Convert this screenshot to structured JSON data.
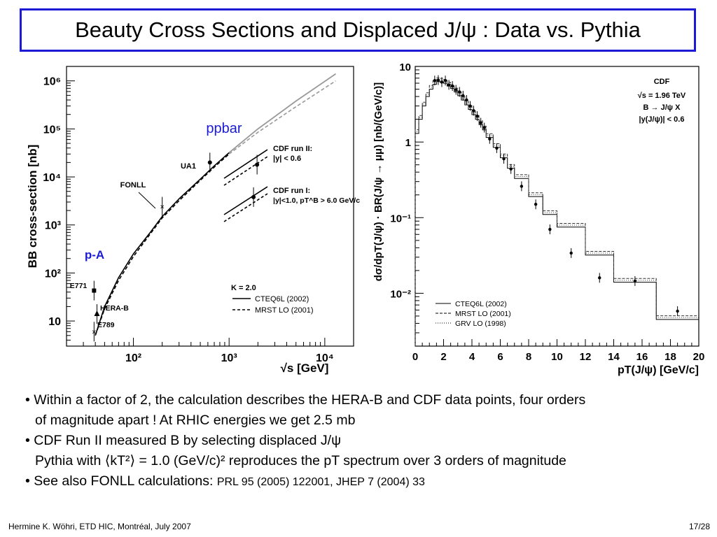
{
  "title": "Beauty Cross Sections and Displaced J/ψ : Data vs. Pythia",
  "bullets": {
    "b1_line1": "• Within a factor of 2, the calculation describes the HERA-B and CDF data points, four orders",
    "b1_line2": "of magnitude apart !  At RHIC energies we get 2.5 mb",
    "b2_line1": "• CDF Run II measured B by selecting displaced J/ψ",
    "b2_line2": "Pythia with ⟨kT²⟩ = 1.0 (GeV/c)² reproduces the pT spectrum over 3 orders of magnitude",
    "b3_main": "• See also FONLL calculations: ",
    "b3_ref": "PRL 95 (2005) 122001, JHEP 7 (2004) 33"
  },
  "footer": {
    "left": "Hermine K. Wöhri, ETD HIC, Montréal, July 2007",
    "right": "17/28"
  },
  "chart_data": [
    {
      "type": "line",
      "title": "",
      "xlabel": "√s [GeV]",
      "ylabel": "BB cross-section [nb]",
      "xscale": "log",
      "yscale": "log",
      "xlim": [
        20,
        20000
      ],
      "ylim": [
        3,
        2000000
      ],
      "x_tick_labels": [
        "10²",
        "10³",
        "10⁴"
      ],
      "y_tick_labels": [
        "10",
        "10²",
        "10³",
        "10⁴",
        "10⁵",
        "10⁶"
      ],
      "annotations": [
        "ppbar",
        "p-A",
        "FONLL",
        "UA1",
        "E771",
        "HERA-B",
        "E789"
      ],
      "legend_boxes": [
        {
          "title": "CDF run II:",
          "sub": "|y| < 0.6"
        },
        {
          "title": "CDF run I:",
          "sub": "|y|<1.0, pT^B > 6.0 GeV/c"
        }
      ],
      "legend_main": {
        "header": "K = 2.0",
        "entries": [
          "CTEQ6L (2002)",
          "MRST LO (2001)"
        ]
      },
      "series": [
        {
          "name": "CTEQ6L (2002)",
          "style": "solid",
          "x": [
            40,
            50,
            70,
            100,
            150,
            200,
            300,
            500,
            700,
            1000
          ],
          "y": [
            5,
            20,
            80,
            250,
            700,
            1500,
            3500,
            9000,
            17000,
            32000
          ]
        },
        {
          "name": "MRST LO (2001)",
          "style": "dashed",
          "x": [
            40,
            50,
            70,
            100,
            150,
            200,
            300,
            500,
            700,
            1000
          ],
          "y": [
            5,
            18,
            70,
            220,
            650,
            1400,
            3200,
            8500,
            16000,
            30000
          ]
        }
      ],
      "points": [
        {
          "label": "E771",
          "x": 38.8,
          "y": 43
        },
        {
          "label": "HERA-B",
          "x": 41.6,
          "y": 14
        },
        {
          "label": "E789",
          "x": 38.8,
          "y": 6
        },
        {
          "label": "FONLL",
          "x": 200,
          "y": 2400
        },
        {
          "label": "UA1",
          "x": 630,
          "y": 20000
        },
        {
          "label": "CDF run II",
          "x": 1960,
          "y": 18000
        },
        {
          "label": "CDF run I",
          "x": 1800,
          "y": 3800
        }
      ]
    },
    {
      "type": "line",
      "title": "",
      "xlabel": "pT(J/ψ) [GeV/c]",
      "ylabel": "dσ/dpT(J/ψ) · BR(J/ψ → μμ) [nb/(GeV/c)]",
      "yscale": "log",
      "xlim": [
        0,
        20
      ],
      "ylim": [
        0.002,
        10
      ],
      "x_ticks": [
        0,
        2,
        4,
        6,
        8,
        10,
        12,
        14,
        16,
        18,
        20
      ],
      "y_tick_labels": [
        "10⁻²",
        "10⁻¹",
        "1",
        "10"
      ],
      "legend_header": [
        "CDF",
        "√s = 1.96 TeV",
        "B → J/ψ X",
        "|y(J/ψ)| < 0.6"
      ],
      "legend_entries": [
        "CTEQ6L (2002)",
        "MRST LO (2001)",
        "GRV LO (1998)"
      ],
      "series": [
        {
          "name": "CTEQ6L (2002)",
          "style": "solid",
          "edges": [
            0,
            0.25,
            0.5,
            0.75,
            1,
            1.25,
            1.5,
            1.75,
            2,
            2.25,
            2.5,
            2.75,
            3,
            3.25,
            3.5,
            3.75,
            4,
            4.25,
            4.5,
            4.75,
            5,
            5.5,
            6,
            6.5,
            7,
            8,
            9,
            10,
            12,
            14,
            17,
            20
          ],
          "values": [
            1.3,
            2.0,
            3.0,
            4.0,
            5.0,
            5.8,
            6.3,
            6.2,
            6.0,
            5.5,
            5.1,
            4.6,
            4.1,
            3.6,
            3.1,
            2.7,
            2.3,
            2.0,
            1.7,
            1.45,
            1.15,
            0.85,
            0.62,
            0.45,
            0.33,
            0.19,
            0.11,
            0.075,
            0.032,
            0.014,
            0.0045
          ]
        }
      ],
      "data": {
        "x": [
          1.375,
          1.625,
          1.875,
          2.125,
          2.375,
          2.625,
          2.875,
          3.125,
          3.375,
          3.625,
          3.875,
          4.125,
          4.375,
          4.625,
          4.875,
          5.25,
          5.75,
          6.25,
          6.75,
          7.5,
          8.5,
          9.5,
          11,
          13,
          15.5,
          18.5
        ],
        "y": [
          6.5,
          6.6,
          6.2,
          6.5,
          5.7,
          5.5,
          4.9,
          4.6,
          4.1,
          3.6,
          3.0,
          2.6,
          2.2,
          1.8,
          1.55,
          1.1,
          0.83,
          0.6,
          0.44,
          0.26,
          0.15,
          0.07,
          0.034,
          0.016,
          0.0145,
          0.0058
        ]
      }
    }
  ]
}
